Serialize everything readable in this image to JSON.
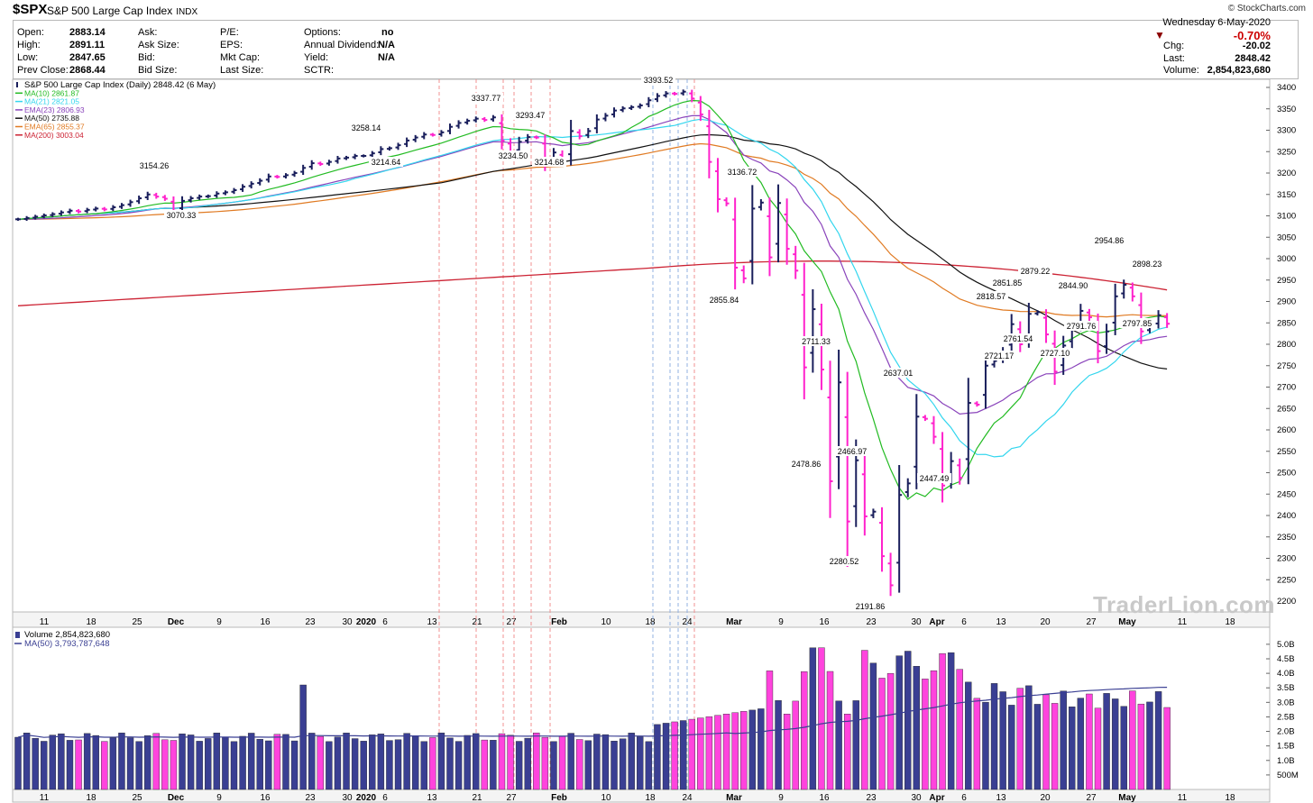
{
  "header": {
    "symbol": "$SPX",
    "name": "S&P 500 Large Cap Index",
    "exchange": "INDX",
    "copyright": "© StockCharts.com"
  },
  "quote": {
    "open_label": "Open:",
    "open": "2883.14",
    "high_label": "High:",
    "high": "2891.11",
    "low_label": "Low:",
    "low": "2847.65",
    "prev_label": "Prev Close:",
    "prev": "2868.44",
    "ask_label": "Ask:",
    "asksize_label": "Ask Size:",
    "bid_label": "Bid:",
    "bidsize_label": "Bid Size:",
    "pe_label": "P/E:",
    "eps_label": "EPS:",
    "mktcap_label": "Mkt Cap:",
    "lastsize_label": "Last Size:",
    "options_label": "Options:",
    "options": "no",
    "div_label": "Annual Dividend:",
    "div": "N/A",
    "yield_label": "Yield:",
    "yield": "N/A",
    "sctr_label": "SCTR:",
    "date": "Wednesday  6-May-2020",
    "change_pct": "-0.70%",
    "chg_label": "Chg:",
    "chg": "-20.02",
    "last_label": "Last:",
    "last": "2848.42",
    "vol_label": "Volume:",
    "vol": "2,854,823,680"
  },
  "colors": {
    "up": "#1a1f5c",
    "down": "#ff22cc",
    "ma10": "#22bb22",
    "ma21": "#33d6ee",
    "ema23": "#8a44bb",
    "ma50": "#111111",
    "ema65": "#e07a22",
    "ma200": "#cc2233",
    "vol_up": "#3a3f93",
    "vol_down": "#ff44dd",
    "grid_red": "#f09090",
    "grid_blue": "#90b0e0"
  },
  "chart_data": [
    {
      "type": "candlestick",
      "legend": [
        {
          "label": "S&P 500 Large Cap Index (Daily) 2848.42 (6 May)",
          "color": "#1a1f5c"
        },
        {
          "label": "MA(10) 2861.87",
          "color": "#22bb22"
        },
        {
          "label": "MA(21) 2821.05",
          "color": "#33d6ee"
        },
        {
          "label": "EMA(23) 2806.93",
          "color": "#8a44bb"
        },
        {
          "label": "MA(50) 2735.88",
          "color": "#111111"
        },
        {
          "label": "EMA(65) 2855.37",
          "color": "#e07a22"
        },
        {
          "label": "MA(200) 3003.04",
          "color": "#cc2233"
        }
      ],
      "ylim": [
        2170,
        3420
      ],
      "y_ticks": [
        "2200",
        "2250",
        "2300",
        "2350",
        "2400",
        "2450",
        "2500",
        "2550",
        "2600",
        "2650",
        "2700",
        "2750",
        "2800",
        "2850",
        "2900",
        "2950",
        "3000",
        "3050",
        "3100",
        "3150",
        "3200",
        "3250",
        "3300",
        "3350",
        "3400"
      ],
      "x_ticks": [
        "11",
        "18",
        "25",
        "Dec",
        "9",
        "16",
        "23",
        "30",
        "2020",
        "6",
        "13",
        "21",
        "27",
        "Feb",
        "10",
        "18",
        "24",
        "Mar",
        "9",
        "16",
        "23",
        "30",
        "Apr",
        "6",
        "13",
        "20",
        "27",
        "May",
        "11",
        "18"
      ],
      "annotations": [
        "3154.26",
        "3070.33",
        "3258.14",
        "3214.64",
        "3337.77",
        "3293.47",
        "3234.50",
        "3214.68",
        "3393.52",
        "3136.72",
        "2855.84",
        "2711.33",
        "2478.86",
        "2466.97",
        "2280.52",
        "2191.86",
        "2637.01",
        "2447.49",
        "2818.57",
        "2851.85",
        "2879.22",
        "2721.17",
        "2761.54",
        "2844.90",
        "2727.10",
        "2791.76",
        "2954.86",
        "2898.23",
        "2797.85"
      ],
      "closes": [
        3092,
        3095,
        3098,
        3101,
        3104,
        3108,
        3112,
        3110,
        3114,
        3117,
        3115,
        3120,
        3125,
        3132,
        3141,
        3150,
        3145,
        3140,
        3112,
        3135,
        3141,
        3145,
        3146,
        3152,
        3155,
        3160,
        3168,
        3175,
        3182,
        3192,
        3191,
        3195,
        3200,
        3212,
        3223,
        3221,
        3226,
        3234,
        3236,
        3240,
        3240,
        3246,
        3256,
        3258,
        3265,
        3276,
        3283,
        3290,
        3289,
        3295,
        3308,
        3317,
        3322,
        3327,
        3324,
        3330,
        3276,
        3247,
        3273,
        3284,
        3283,
        3226,
        3248,
        3226,
        3298,
        3286,
        3298,
        3325,
        3334,
        3346,
        3351,
        3354,
        3358,
        3370,
        3380,
        3386,
        3385,
        3390,
        3374,
        3337,
        3226,
        3139,
        3129,
        2979,
        2954,
        3117,
        3131,
        3003,
        3130,
        3023,
        2972,
        2746,
        2882,
        2741,
        2480,
        2711,
        2386,
        2529,
        2398,
        2409,
        2305,
        2237,
        2448,
        2475,
        2631,
        2626,
        2584,
        2470,
        2527,
        2488,
        2663,
        2659,
        2750,
        2761,
        2783,
        2847,
        2800,
        2871,
        2875,
        2823,
        2736,
        2797,
        2837,
        2878,
        2863,
        2784,
        2830,
        2912,
        2939,
        2912,
        2830,
        2842,
        2868,
        2848
      ],
      "volume": {
        "legend": [
          {
            "label": "Volume 2,854,823,680",
            "color": "#3a3f93"
          },
          {
            "label": "MA(50) 3,793,787,648",
            "color": "#3a3f93"
          }
        ],
        "y_ticks": [
          "500M",
          "1.0B",
          "1.5B",
          "2.0B",
          "2.5B",
          "3.0B",
          "3.5B",
          "4.0B",
          "4.5B",
          "5.0B"
        ],
        "ylim": [
          0,
          5.4
        ]
      }
    }
  ]
}
